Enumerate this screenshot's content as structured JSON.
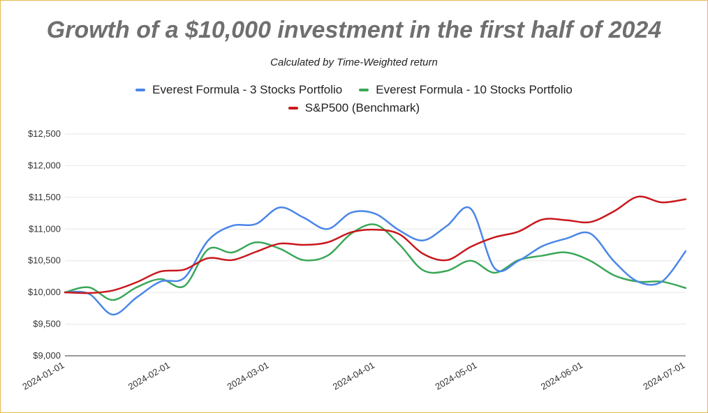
{
  "title": "Growth of a $10,000 investment in the first half of 2024",
  "subtitle": "Calculated by Time-Weighted return",
  "legend": [
    {
      "label": "Everest Formula - 3 Stocks Portfolio",
      "color": "#4a86e8"
    },
    {
      "label": "Everest Formula - 10 Stocks Portfolio",
      "color": "#3aa757"
    },
    {
      "label": "S&P500 (Benchmark)",
      "color": "#c8181c"
    }
  ],
  "chart_data": {
    "type": "line",
    "title": "Growth of a $10,000 investment in the first half of 2024",
    "subtitle": "Calculated by Time-Weighted return",
    "x": [
      "2024-01-01",
      "2024-01-08",
      "2024-01-15",
      "2024-01-22",
      "2024-01-29",
      "2024-02-05",
      "2024-02-12",
      "2024-02-19",
      "2024-02-26",
      "2024-03-04",
      "2024-03-11",
      "2024-03-18",
      "2024-03-25",
      "2024-04-01",
      "2024-04-08",
      "2024-04-15",
      "2024-04-22",
      "2024-04-29",
      "2024-05-06",
      "2024-05-13",
      "2024-05-20",
      "2024-05-27",
      "2024-06-03",
      "2024-06-10",
      "2024-06-17",
      "2024-06-24",
      "2024-07-01"
    ],
    "x_ticks": [
      "2024-01-01",
      "2024-02-01",
      "2024-03-01",
      "2024-04-01",
      "2024-05-01",
      "2024-06-01",
      "2024-07-01"
    ],
    "y_ticks": [
      "$9,000",
      "$9,500",
      "$10,000",
      "$10,500",
      "$11,000",
      "$11,500",
      "$12,000",
      "$12,500"
    ],
    "ylim": [
      9000,
      12500
    ],
    "xlim": [
      "2024-01-01",
      "2024-07-01"
    ],
    "grid": true,
    "legend_position": "top",
    "series": [
      {
        "name": "Everest Formula - 3 Stocks Portfolio",
        "color": "#4a86e8",
        "values": [
          10000,
          9980,
          9650,
          9920,
          10170,
          10230,
          10820,
          11050,
          11080,
          11340,
          11180,
          11000,
          11260,
          11240,
          10980,
          10820,
          11050,
          11320,
          10380,
          10500,
          10730,
          10850,
          10930,
          10490,
          10170,
          10170,
          10650
        ]
      },
      {
        "name": "Everest Formula - 10 Stocks Portfolio",
        "color": "#3aa757",
        "values": [
          10000,
          10080,
          9880,
          10080,
          10210,
          10100,
          10680,
          10630,
          10790,
          10690,
          10510,
          10580,
          10930,
          11070,
          10760,
          10350,
          10340,
          10500,
          10310,
          10510,
          10580,
          10630,
          10500,
          10270,
          10170,
          10170,
          10070
        ]
      },
      {
        "name": "S&P500 (Benchmark)",
        "color": "#c8181c",
        "values": [
          10000,
          9990,
          10030,
          10160,
          10330,
          10360,
          10540,
          10510,
          10640,
          10770,
          10750,
          10790,
          10950,
          10990,
          10920,
          10610,
          10510,
          10720,
          10870,
          10960,
          11150,
          11140,
          11110,
          11280,
          11510,
          11420,
          11470
        ]
      }
    ]
  }
}
